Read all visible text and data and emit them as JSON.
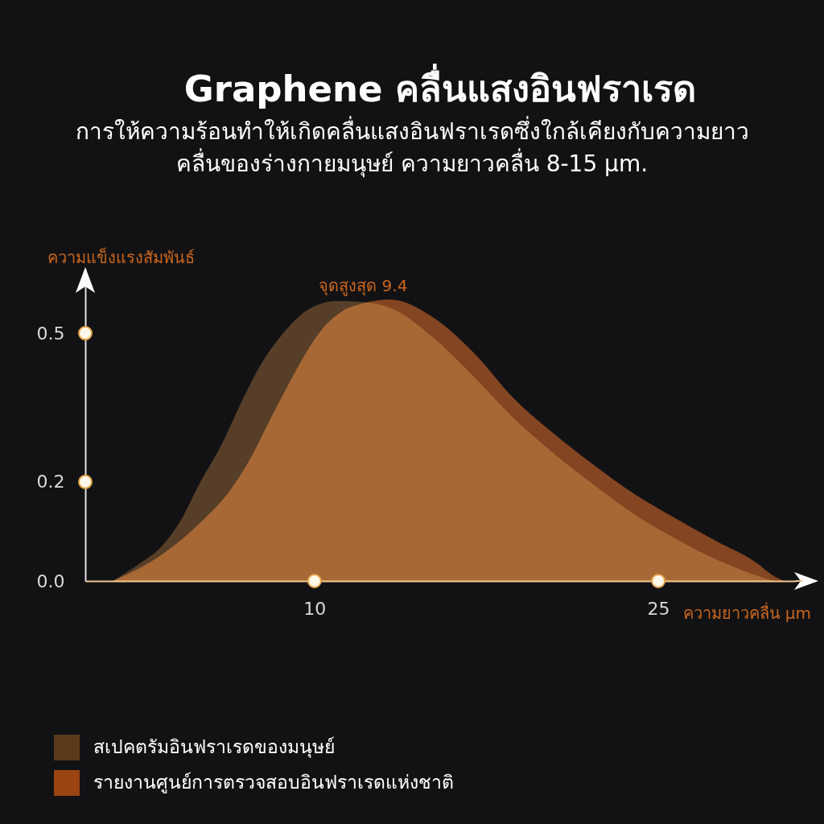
{
  "chart_data": {
    "type": "area",
    "title": "Graphene คลื่นแสงอินฟราเรด",
    "subtitle": "การให้ความร้อนทำให้เกิดคลื่นแสงอินฟราเรดซึ่งใกล้เคียงกับความยาว\nคลื่นของร่างกายมนุษย์ ความยาวคลื่น 8-15 µm.",
    "xlabel": "ความยาวคลื่น µm",
    "ylabel": "ความแข็งแรงสัมพันธ์",
    "annotations": [
      {
        "text": "จุดสูงสุด 9.4",
        "x": 11,
        "y": 0.565
      }
    ],
    "series": [
      {
        "name": "สเปคตรัมอินฟราเรดของมนุษย์",
        "color": "#5b3a1b",
        "x": [
          1.2,
          2.4,
          3.3,
          4.2,
          5,
          5.9,
          6.8,
          7.7,
          8.6,
          9.6,
          11,
          12.1,
          13.5,
          15.2,
          17,
          18.7,
          20.5,
          22.3,
          24,
          25.8,
          27.5,
          29.3,
          30
        ],
        "values": [
          0,
          0.036,
          0.068,
          0.125,
          0.198,
          0.271,
          0.36,
          0.44,
          0.498,
          0.544,
          0.565,
          0.563,
          0.547,
          0.49,
          0.41,
          0.328,
          0.255,
          0.19,
          0.133,
          0.084,
          0.044,
          0.011,
          0
        ]
      },
      {
        "name": "รายงานศูนย์การตรวจสอบอินฟราเรดแห่งชาติ",
        "color": "#9a4412",
        "x": [
          1.2,
          3.3,
          5,
          6.3,
          7.2,
          8,
          8.9,
          9.6,
          10.3,
          11.2,
          12.1,
          13.3,
          15.2,
          17,
          18.7,
          20.5,
          22.3,
          24,
          25.8,
          27.5,
          29.3,
          30,
          30.5
        ],
        "values": [
          0,
          0.052,
          0.117,
          0.182,
          0.247,
          0.32,
          0.4,
          0.458,
          0.506,
          0.544,
          0.56,
          0.568,
          0.531,
          0.458,
          0.368,
          0.295,
          0.23,
          0.174,
          0.125,
          0.081,
          0.036,
          0.011,
          0
        ]
      }
    ],
    "xlim": [
      0,
      31
    ],
    "ylim": [
      0,
      0.63
    ],
    "xticks": [
      10,
      25
    ],
    "yticks": [
      {
        "value": 0,
        "label": "0.0"
      },
      0.2,
      0.5
    ],
    "legend": "bottom left"
  }
}
